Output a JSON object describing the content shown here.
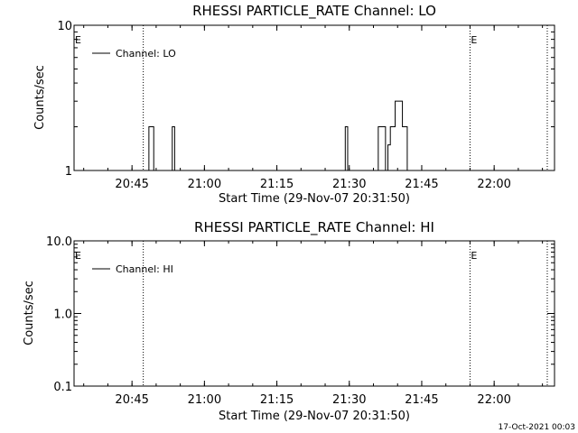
{
  "chart_data": [
    {
      "type": "line",
      "title": "RHESSI PARTICLE_RATE Channel: LO",
      "xlabel": "Start Time (29-Nov-07 20:31:50)",
      "ylabel": "Counts/sec",
      "yscale": "log",
      "ylim": [
        1,
        10
      ],
      "xlim": [
        "20:33:00",
        "22:12:30"
      ],
      "y_ticks": [
        {
          "v": 1,
          "label": "1"
        },
        {
          "v": 10,
          "label": "10"
        }
      ],
      "x_ticks": [
        "20:45",
        "21:00",
        "21:15",
        "21:30",
        "21:45",
        "22:00"
      ],
      "vlines": [
        "20:47:20",
        "21:55:00",
        "22:11:00"
      ],
      "markers": [
        {
          "t": "20:33:00",
          "label": "E"
        },
        {
          "t": "21:55:00",
          "label": "E"
        }
      ],
      "legend": {
        "position": "top-left",
        "entries": [
          "Channel: LO"
        ]
      },
      "series": [
        {
          "name": "Channel: LO",
          "x": [
            "20:33:00",
            "20:48:00",
            "20:48:30",
            "20:49:00",
            "20:49:30",
            "20:52:50",
            "20:53:20",
            "20:53:50",
            "21:28:40",
            "21:29:10",
            "21:29:40",
            "21:35:30",
            "21:36:00",
            "21:37:00",
            "21:37:30",
            "21:38:00",
            "21:38:30",
            "21:39:00",
            "21:39:30",
            "21:40:00",
            "21:41:00",
            "21:41:30",
            "21:42:00",
            "21:42:30",
            "21:55:00",
            "22:12:30"
          ],
          "values": [
            1,
            1,
            2,
            2,
            1,
            1,
            2,
            1,
            1,
            2,
            1,
            1,
            2,
            2,
            1,
            1.5,
            2,
            2,
            3,
            3,
            2,
            2,
            1,
            1,
            1,
            1
          ]
        }
      ]
    },
    {
      "type": "line",
      "title": "RHESSI PARTICLE_RATE Channel: HI",
      "xlabel": "Start Time (29-Nov-07 20:31:50)",
      "ylabel": "Counts/sec",
      "yscale": "log",
      "ylim": [
        0.1,
        10
      ],
      "xlim": [
        "20:33:00",
        "22:12:30"
      ],
      "y_ticks": [
        {
          "v": 0.1,
          "label": "0.1"
        },
        {
          "v": 1,
          "label": "1.0"
        },
        {
          "v": 10,
          "label": "10.0"
        }
      ],
      "x_ticks": [
        "20:45",
        "21:00",
        "21:15",
        "21:30",
        "21:45",
        "22:00"
      ],
      "vlines": [
        "20:47:20",
        "21:55:00",
        "22:11:00"
      ],
      "markers": [
        {
          "t": "20:33:00",
          "label": "E"
        },
        {
          "t": "21:55:00",
          "label": "E"
        }
      ],
      "legend": {
        "position": "top-left",
        "entries": [
          "Channel: HI"
        ]
      },
      "series": [
        {
          "name": "Channel: HI",
          "x": [],
          "values": []
        }
      ]
    }
  ],
  "footer": {
    "timestamp": "17-Oct-2021 00:03"
  }
}
